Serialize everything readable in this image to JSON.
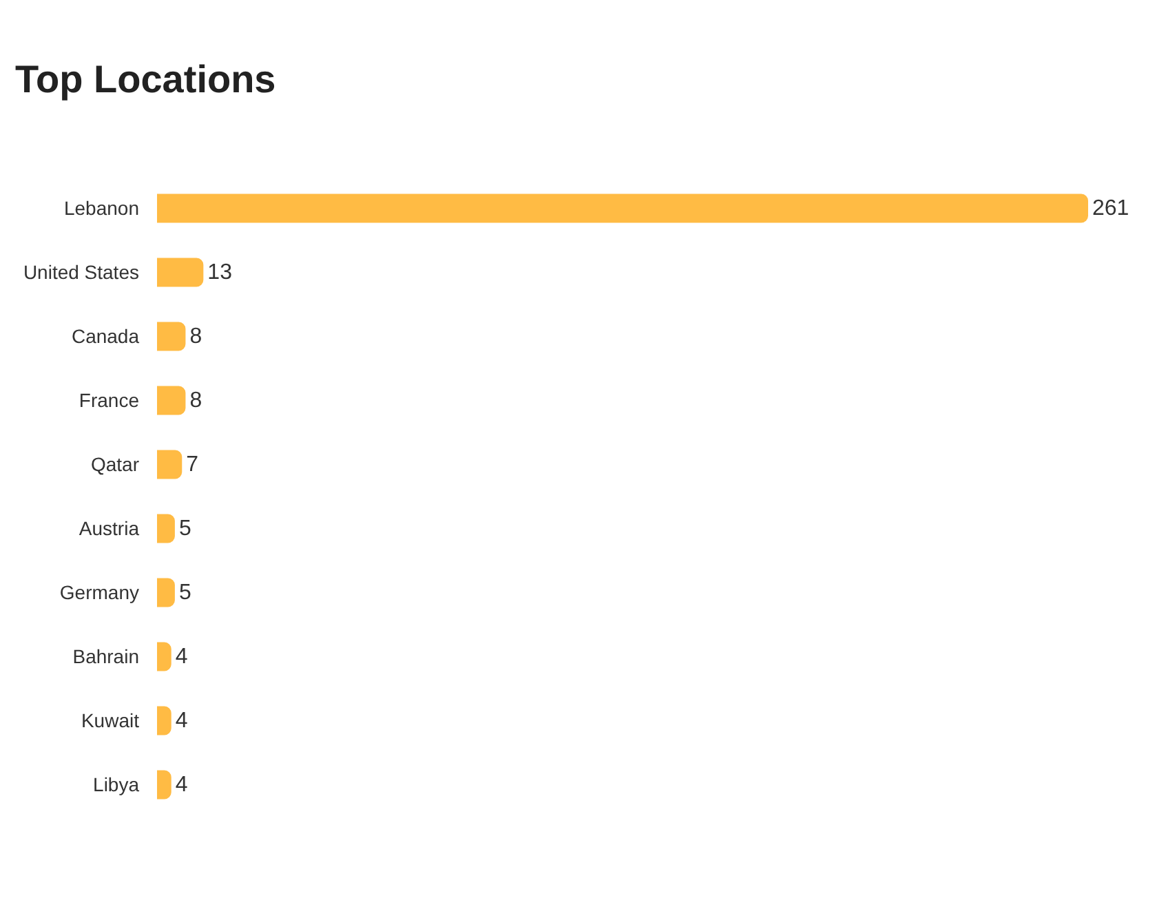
{
  "chart_data": {
    "type": "bar",
    "title": "Top Locations",
    "orientation": "horizontal",
    "categories": [
      "Lebanon",
      "United States",
      "Canada",
      "France",
      "Qatar",
      "Austria",
      "Germany",
      "Bahrain",
      "Kuwait",
      "Libya"
    ],
    "values": [
      261,
      13,
      8,
      8,
      7,
      5,
      5,
      4,
      4,
      4
    ],
    "color": "#ffbb44",
    "data_labels": true
  }
}
